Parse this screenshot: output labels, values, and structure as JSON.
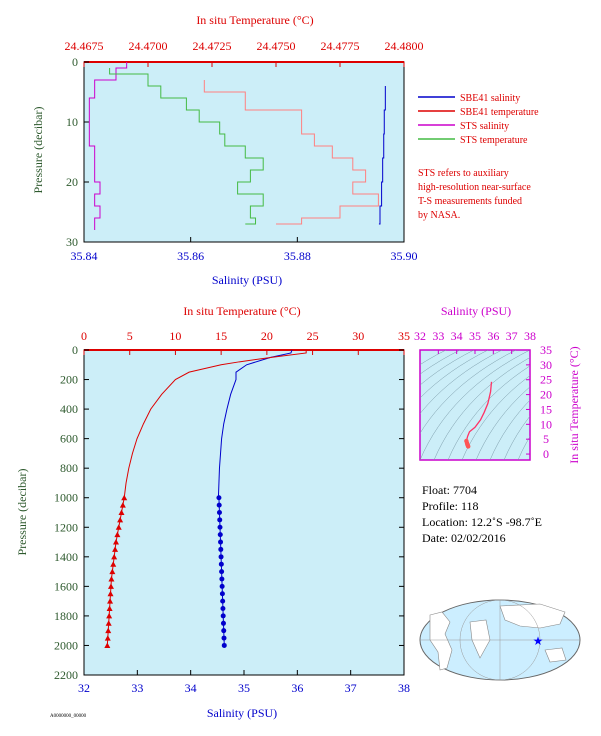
{
  "chart_data": [
    {
      "id": "top",
      "type": "line",
      "xlabel": "Salinity (PSU)",
      "x2label": "In situ Temperature (°C)",
      "ylabel": "Pressure (decibar)",
      "xlim": [
        35.84,
        35.9
      ],
      "x2lim": [
        24.4675,
        24.48
      ],
      "ylim": [
        30,
        0
      ],
      "xticks": [
        "35.84",
        "35.86",
        "35.88",
        "35.90"
      ],
      "x2ticks": [
        "24.4675",
        "24.4700",
        "24.4725",
        "24.4750",
        "24.4775",
        "24.4800"
      ],
      "yticks": [
        "0",
        "10",
        "20",
        "30"
      ],
      "legend": [
        {
          "name": "SBE41 salinity",
          "color": "#0000cc"
        },
        {
          "name": "SBE41 temperature",
          "color": "#dd0000"
        },
        {
          "name": "STS salinity",
          "color": "#cc00cc"
        },
        {
          "name": "STS temperature",
          "color": "#44bb44"
        }
      ],
      "note": [
        "STS refers to auxiliary",
        "high-resolution near-surface",
        "T-S measurements funded",
        "by NASA."
      ],
      "series": [
        {
          "name": "SBE41 salinity",
          "axis": "x",
          "pressure": [
            4,
            8,
            12,
            16,
            20,
            24,
            27
          ],
          "values": [
            35.8965,
            35.8963,
            35.8962,
            35.896,
            35.8958,
            35.8955,
            35.8953
          ]
        },
        {
          "name": "SBE41 temperature",
          "axis": "x2",
          "pressure": [
            3,
            5,
            8,
            12,
            14,
            16,
            18,
            20,
            22,
            24,
            26,
            27
          ],
          "values": [
            24.4722,
            24.4738,
            24.476,
            24.4765,
            24.4772,
            24.478,
            24.4785,
            24.478,
            24.479,
            24.4775,
            24.476,
            24.475
          ]
        },
        {
          "name": "STS salinity",
          "axis": "x",
          "pressure": [
            0,
            1,
            3,
            6,
            10,
            14,
            18,
            20,
            22,
            24,
            26,
            28
          ],
          "values": [
            35.848,
            35.846,
            35.842,
            35.841,
            35.841,
            35.842,
            35.842,
            35.843,
            35.842,
            35.843,
            35.842,
            35.842
          ]
        },
        {
          "name": "STS temperature",
          "axis": "x2",
          "pressure": [
            1,
            2,
            4,
            6,
            8,
            10,
            12,
            14,
            16,
            18,
            20,
            22,
            24,
            26,
            27
          ],
          "values": [
            24.4685,
            24.47,
            24.4705,
            24.4715,
            24.472,
            24.4728,
            24.473,
            24.4738,
            24.4745,
            24.474,
            24.4735,
            24.4745,
            24.474,
            24.4742,
            24.4738
          ]
        }
      ]
    },
    {
      "id": "profile",
      "type": "line",
      "xlabel": "Salinity (PSU)",
      "x2label": "In situ Temperature (°C)",
      "ylabel": "Pressure (decibar)",
      "xlim": [
        32,
        38
      ],
      "x2lim": [
        0,
        35
      ],
      "ylim": [
        2200,
        0
      ],
      "xticks": [
        "32",
        "33",
        "34",
        "35",
        "36",
        "37",
        "38"
      ],
      "x2ticks": [
        "0",
        "5",
        "10",
        "15",
        "20",
        "25",
        "30",
        "35"
      ],
      "yticks": [
        "0",
        "200",
        "400",
        "600",
        "800",
        "1000",
        "1200",
        "1400",
        "1600",
        "1800",
        "2000",
        "2200"
      ],
      "series": [
        {
          "name": "salinity",
          "axis": "x",
          "color": "#0000cc",
          "pressure": [
            0,
            20,
            50,
            100,
            150,
            200,
            300,
            400,
            500,
            600,
            700,
            800,
            900,
            1000
          ],
          "values": [
            35.9,
            35.88,
            35.5,
            35.05,
            34.85,
            34.85,
            34.75,
            34.68,
            34.62,
            34.58,
            34.56,
            34.54,
            34.53,
            34.52
          ]
        },
        {
          "name": "salinity-deep",
          "axis": "x",
          "color": "#0000cc",
          "markers": "circle",
          "pressure": [
            1000,
            1050,
            1100,
            1150,
            1200,
            1250,
            1300,
            1350,
            1400,
            1450,
            1500,
            1550,
            1600,
            1650,
            1700,
            1750,
            1800,
            1850,
            1900,
            1950,
            2000
          ],
          "values": [
            34.53,
            34.535,
            34.54,
            34.545,
            34.55,
            34.555,
            34.56,
            34.565,
            34.57,
            34.575,
            34.58,
            34.585,
            34.59,
            34.595,
            34.6,
            34.605,
            34.61,
            34.615,
            34.62,
            34.625,
            34.63
          ]
        },
        {
          "name": "temperature",
          "axis": "x2",
          "color": "#dd0000",
          "pressure": [
            0,
            20,
            50,
            80,
            100,
            150,
            200,
            300,
            400,
            500,
            600,
            700,
            800,
            900,
            1000
          ],
          "values": [
            24.3,
            24.3,
            20.5,
            17.0,
            15.0,
            11.5,
            10.0,
            8.5,
            7.3,
            6.5,
            5.8,
            5.3,
            4.9,
            4.6,
            4.4
          ]
        },
        {
          "name": "temperature-deep",
          "axis": "x2",
          "color": "#dd0000",
          "markers": "triangle",
          "pressure": [
            1000,
            1050,
            1100,
            1150,
            1200,
            1250,
            1300,
            1350,
            1400,
            1450,
            1500,
            1550,
            1600,
            1650,
            1700,
            1750,
            1800,
            1850,
            1900,
            1950,
            2000
          ],
          "values": [
            4.4,
            4.25,
            4.1,
            3.95,
            3.8,
            3.65,
            3.5,
            3.4,
            3.3,
            3.2,
            3.1,
            3.0,
            2.95,
            2.9,
            2.85,
            2.8,
            2.75,
            2.7,
            2.65,
            2.6,
            2.55
          ]
        }
      ]
    },
    {
      "id": "ts-diagram",
      "type": "scatter",
      "xlabel": "Salinity (PSU)",
      "ylabel": "In situ Temperature (°C)",
      "xlim": [
        32,
        38
      ],
      "ylim": [
        -2,
        35
      ],
      "xticks": [
        "32",
        "33",
        "34",
        "35",
        "36",
        "37",
        "38"
      ],
      "yticks": [
        "0",
        "5",
        "10",
        "15",
        "20",
        "25",
        "30",
        "35"
      ],
      "series": [
        {
          "name": "T-S curve",
          "x": [
            34.53,
            34.6,
            34.7,
            35.0,
            35.3,
            35.5,
            35.7,
            35.85,
            35.9
          ],
          "y": [
            4.4,
            6.0,
            7.5,
            9.0,
            11.5,
            14.0,
            17.0,
            21.0,
            24.3
          ]
        },
        {
          "name": "T-S deep",
          "x": [
            34.53,
            34.56,
            34.58,
            34.6,
            34.62,
            34.63
          ],
          "y": [
            4.4,
            3.8,
            3.3,
            3.0,
            2.7,
            2.55
          ]
        }
      ]
    }
  ],
  "info": {
    "float": "Float:  7704",
    "profile": "Profile:  118",
    "location": "Location:  12.2˚S  -98.7˚E",
    "date": "Date:  02/02/2016"
  },
  "map": {
    "marker_color": "#0000ff",
    "land_color": "#ffffff",
    "ocean_color": "#cceeff"
  },
  "colors": {
    "plot_bg": "#cceef8",
    "blue": "#0000cc",
    "red": "#dd0000",
    "magenta": "#cc00cc",
    "green": "#44bb44",
    "darkgreen": "#2e5a2e"
  },
  "footer": "A0000000_00000"
}
